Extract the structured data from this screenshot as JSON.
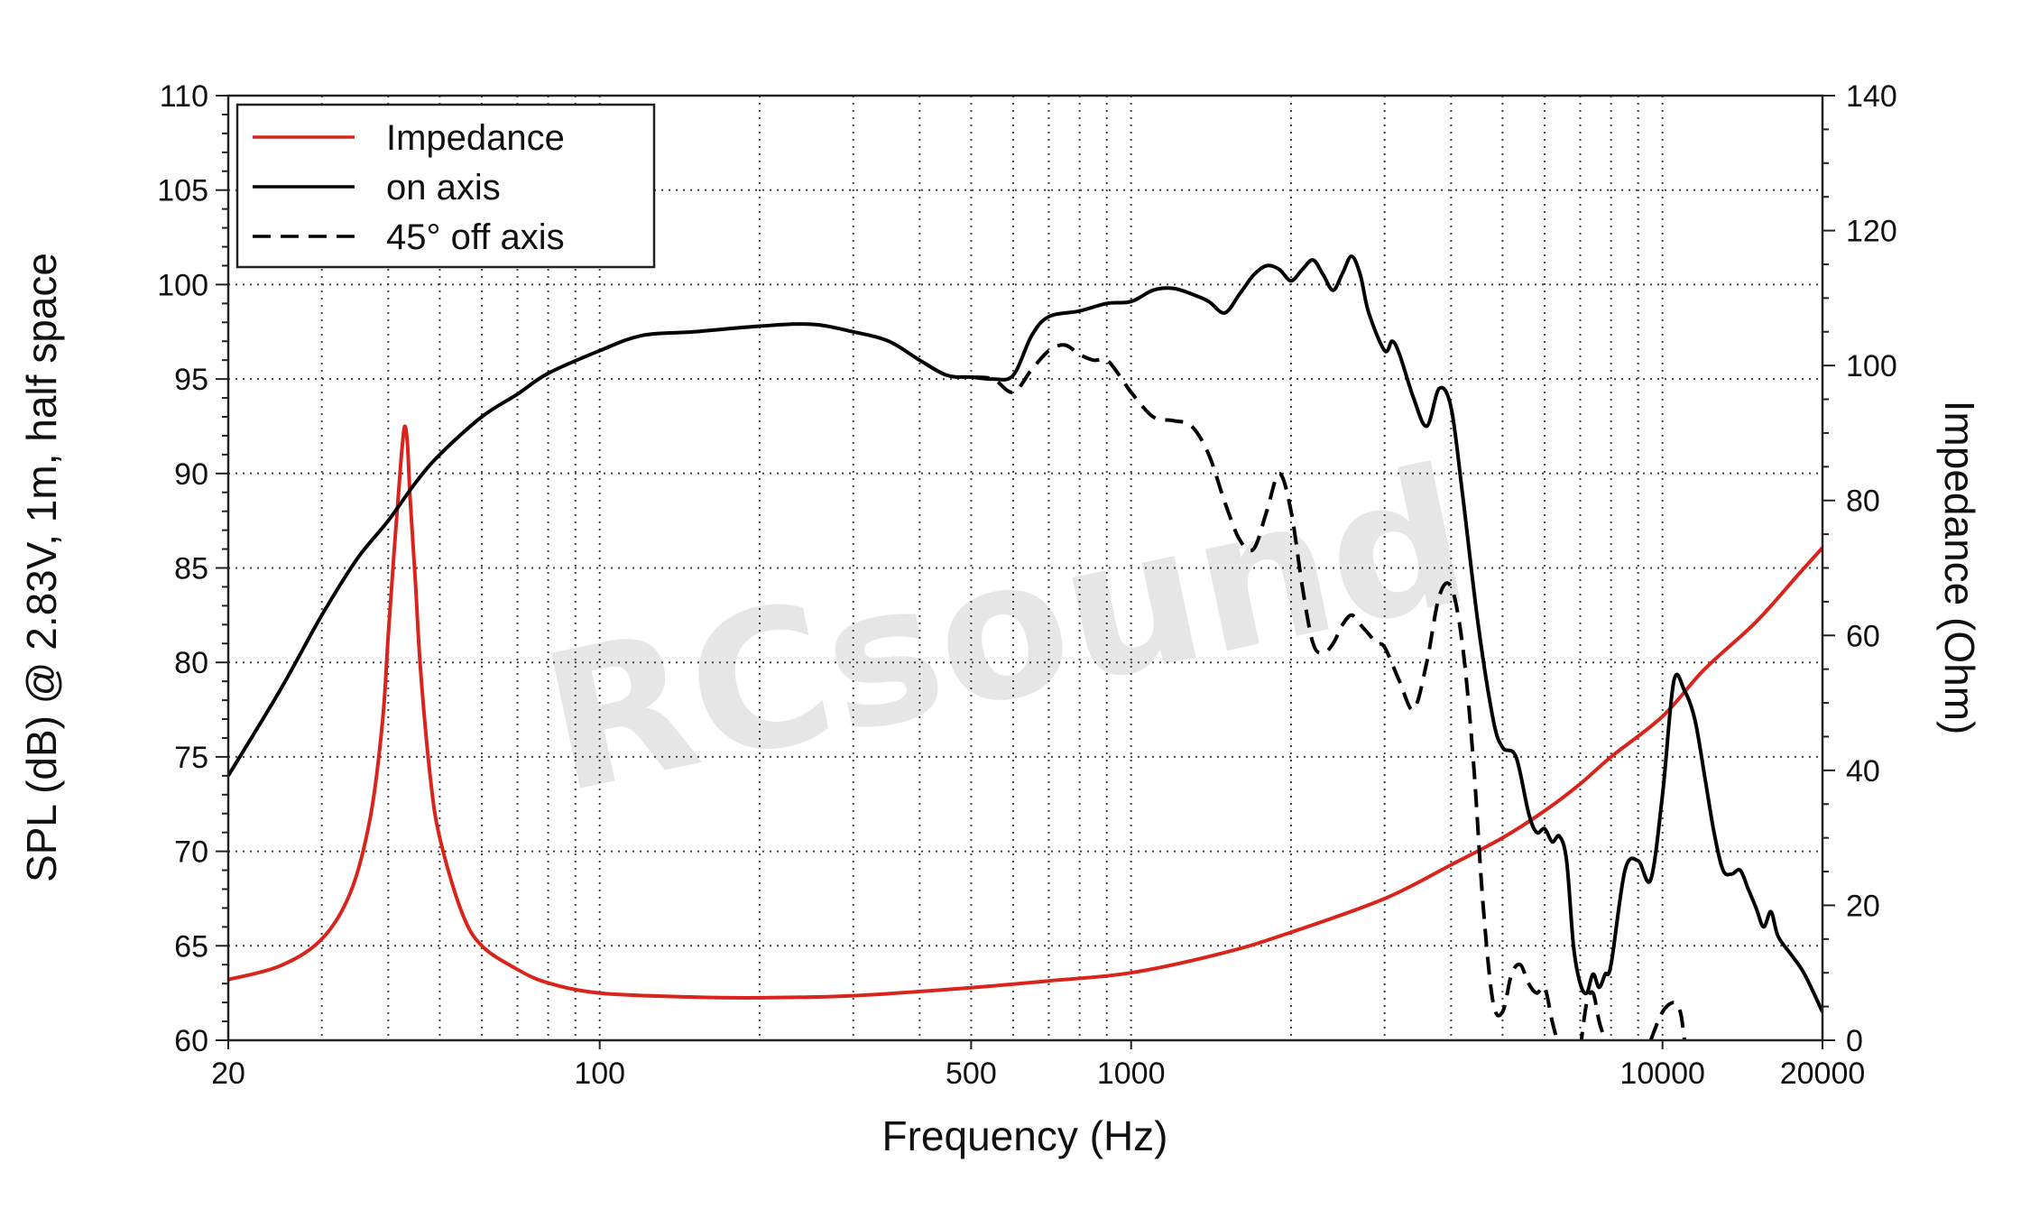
{
  "chart_data": {
    "type": "line",
    "xlabel": "Frequency (Hz)",
    "ylabel": "SPL (dB) @ 2.83V, 1m, half space",
    "y2label": "Impedance (Ohm)",
    "xscale": "log",
    "xlim": [
      20,
      20000
    ],
    "ylim": [
      60,
      110
    ],
    "y2lim": [
      0,
      140
    ],
    "grid": true,
    "legend_position": "top-left",
    "watermark": "RCsound",
    "x_tick_labels": [
      "20",
      "100",
      "500",
      "1000",
      "10000",
      "20000"
    ],
    "x_ticks": [
      20,
      100,
      500,
      1000,
      10000,
      20000
    ],
    "y_tick_labels": [
      "110",
      "105",
      "100",
      "95",
      "90",
      "85",
      "80",
      "75",
      "70",
      "65",
      "60"
    ],
    "y_ticks": [
      110,
      105,
      100,
      95,
      90,
      85,
      80,
      75,
      70,
      65,
      60
    ],
    "y2_tick_labels": [
      "140",
      "120",
      "100",
      "80",
      "60",
      "40",
      "20",
      "0"
    ],
    "y2_ticks": [
      140,
      120,
      100,
      80,
      60,
      40,
      20,
      0
    ],
    "series": [
      {
        "name": "Impedance",
        "axis": "right",
        "color": "#d9241b",
        "style": "solid",
        "points": [
          [
            20,
            9
          ],
          [
            25,
            11
          ],
          [
            30,
            15
          ],
          [
            34,
            22
          ],
          [
            37,
            33
          ],
          [
            39,
            47
          ],
          [
            40,
            60
          ],
          [
            41,
            72
          ],
          [
            42,
            83
          ],
          [
            42.5,
            88
          ],
          [
            43,
            91
          ],
          [
            43.5,
            88
          ],
          [
            44,
            80
          ],
          [
            45,
            68
          ],
          [
            46,
            55
          ],
          [
            48,
            39
          ],
          [
            50,
            30
          ],
          [
            55,
            19
          ],
          [
            60,
            14
          ],
          [
            70,
            10.5
          ],
          [
            80,
            8.5
          ],
          [
            100,
            7
          ],
          [
            150,
            6.4
          ],
          [
            200,
            6.3
          ],
          [
            300,
            6.6
          ],
          [
            500,
            7.8
          ],
          [
            700,
            8.8
          ],
          [
            1000,
            10
          ],
          [
            1500,
            13
          ],
          [
            2000,
            16
          ],
          [
            3000,
            21
          ],
          [
            4000,
            26
          ],
          [
            5000,
            30
          ],
          [
            6000,
            34
          ],
          [
            7000,
            38
          ],
          [
            8000,
            42
          ],
          [
            10000,
            48
          ],
          [
            12000,
            55
          ],
          [
            15000,
            62
          ],
          [
            18000,
            69
          ],
          [
            20000,
            73
          ]
        ]
      },
      {
        "name": "on axis",
        "axis": "left",
        "color": "#000000",
        "style": "solid",
        "points": [
          [
            20,
            74
          ],
          [
            25,
            78.5
          ],
          [
            30,
            82.5
          ],
          [
            35,
            85.5
          ],
          [
            40,
            87.5
          ],
          [
            45,
            89.5
          ],
          [
            50,
            91
          ],
          [
            60,
            93
          ],
          [
            70,
            94.2
          ],
          [
            80,
            95.3
          ],
          [
            100,
            96.5
          ],
          [
            120,
            97.3
          ],
          [
            150,
            97.5
          ],
          [
            200,
            97.8
          ],
          [
            250,
            97.9
          ],
          [
            300,
            97.5
          ],
          [
            350,
            97
          ],
          [
            400,
            96
          ],
          [
            450,
            95.2
          ],
          [
            500,
            95.1
          ],
          [
            550,
            95
          ],
          [
            600,
            95.2
          ],
          [
            650,
            97.3
          ],
          [
            700,
            98.3
          ],
          [
            800,
            98.6
          ],
          [
            900,
            99
          ],
          [
            1000,
            99.1
          ],
          [
            1100,
            99.7
          ],
          [
            1200,
            99.8
          ],
          [
            1300,
            99.5
          ],
          [
            1400,
            99.1
          ],
          [
            1500,
            98.5
          ],
          [
            1600,
            99.5
          ],
          [
            1700,
            100.5
          ],
          [
            1800,
            101
          ],
          [
            1900,
            100.8
          ],
          [
            2000,
            100.2
          ],
          [
            2100,
            100.8
          ],
          [
            2200,
            101.3
          ],
          [
            2300,
            100.5
          ],
          [
            2400,
            99.7
          ],
          [
            2500,
            100.6
          ],
          [
            2600,
            101.5
          ],
          [
            2700,
            100.5
          ],
          [
            2800,
            98.5
          ],
          [
            3000,
            96.5
          ],
          [
            3100,
            97
          ],
          [
            3200,
            96.3
          ],
          [
            3400,
            94
          ],
          [
            3600,
            92.5
          ],
          [
            3800,
            94.5
          ],
          [
            4000,
            93.5
          ],
          [
            4200,
            89
          ],
          [
            4500,
            82
          ],
          [
            4800,
            77
          ],
          [
            5000,
            75.5
          ],
          [
            5300,
            75
          ],
          [
            5600,
            72
          ],
          [
            5800,
            71
          ],
          [
            6000,
            71.2
          ],
          [
            6200,
            70.5
          ],
          [
            6400,
            70.8
          ],
          [
            6600,
            69.5
          ],
          [
            6800,
            65
          ],
          [
            7000,
            63
          ],
          [
            7200,
            62.5
          ],
          [
            7400,
            63.5
          ],
          [
            7600,
            62.8
          ],
          [
            7800,
            63.5
          ],
          [
            8000,
            64
          ],
          [
            8500,
            69
          ],
          [
            9000,
            69.5
          ],
          [
            9500,
            68.5
          ],
          [
            10000,
            73
          ],
          [
            10500,
            79
          ],
          [
            11000,
            78.5
          ],
          [
            11500,
            77
          ],
          [
            12000,
            74
          ],
          [
            12500,
            71
          ],
          [
            13000,
            69
          ],
          [
            13500,
            68.8
          ],
          [
            14000,
            69
          ],
          [
            14500,
            68
          ],
          [
            15000,
            67
          ],
          [
            15500,
            66
          ],
          [
            16000,
            66.8
          ],
          [
            16500,
            65.5
          ],
          [
            17500,
            64.5
          ],
          [
            18500,
            63.5
          ],
          [
            20000,
            61.5
          ]
        ]
      },
      {
        "name": "45° off axis",
        "axis": "left",
        "color": "#000000",
        "style": "dashed",
        "segments": [
          [
            [
              500,
              95.1
            ],
            [
              550,
              95
            ],
            [
              600,
              94.3
            ],
            [
              650,
              95.5
            ],
            [
              700,
              96.5
            ],
            [
              750,
              96.8
            ],
            [
              800,
              96.3
            ],
            [
              850,
              96
            ],
            [
              900,
              96
            ],
            [
              950,
              95.2
            ],
            [
              1000,
              94.3
            ],
            [
              1100,
              93
            ],
            [
              1200,
              92.8
            ],
            [
              1300,
              92.5
            ],
            [
              1400,
              91
            ],
            [
              1500,
              88.5
            ],
            [
              1600,
              86.5
            ],
            [
              1700,
              86
            ],
            [
              1800,
              88
            ],
            [
              1900,
              90
            ],
            [
              2000,
              88
            ],
            [
              2100,
              84
            ],
            [
              2200,
              81
            ],
            [
              2300,
              80.5
            ],
            [
              2400,
              81
            ],
            [
              2500,
              82
            ],
            [
              2600,
              82.5
            ],
            [
              2700,
              82
            ],
            [
              2800,
              81.5
            ],
            [
              2900,
              81
            ],
            [
              3000,
              80.8
            ],
            [
              3200,
              79
            ],
            [
              3400,
              77.5
            ],
            [
              3600,
              80
            ],
            [
              3800,
              83.5
            ],
            [
              4000,
              84
            ],
            [
              4200,
              81
            ],
            [
              4400,
              75
            ],
            [
              4600,
              67
            ],
            [
              4800,
              62
            ],
            [
              5000,
              61.5
            ],
            [
              5200,
              63.5
            ],
            [
              5400,
              64
            ],
            [
              5600,
              63
            ],
            [
              5800,
              62.5
            ],
            [
              6000,
              62.8
            ],
            [
              6200,
              61
            ],
            [
              6400,
              59.5
            ]
          ],
          [
            [
              7000,
              59.5
            ],
            [
              7200,
              62
            ],
            [
              7400,
              62.5
            ],
            [
              7600,
              61
            ],
            [
              7800,
              60
            ]
          ],
          [
            [
              9500,
              60
            ],
            [
              10000,
              61.5
            ],
            [
              10500,
              62
            ],
            [
              10800,
              61.5
            ],
            [
              11000,
              60
            ]
          ]
        ]
      }
    ]
  }
}
